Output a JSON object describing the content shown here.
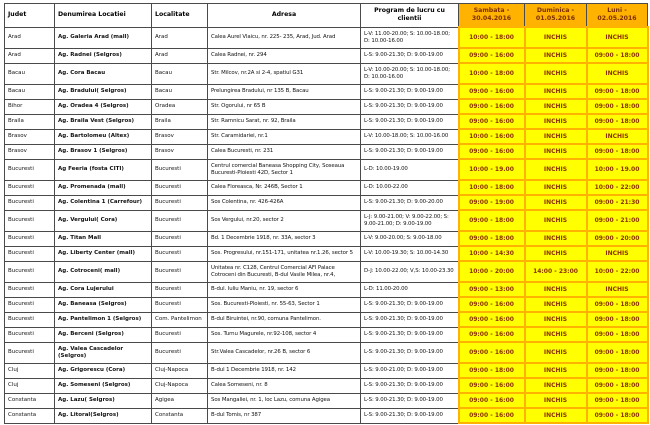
{
  "colors": {
    "header_day_bg": "#ffb200",
    "day_cell_bg": "#ffff00",
    "day_text": "#8b3000",
    "grid_line": "#4a4a4a"
  },
  "table": {
    "headers": {
      "judet": "Judet",
      "denumire": "Denumirea Locatiei",
      "localitate": "Localitate",
      "adresa": "Adresa",
      "program": "Program de lucru cu clientii",
      "sambata": "Sambata - 30.04.2016",
      "duminica": "Duminica - 01.05.2016",
      "luni": "Luni - 02.05.2016"
    },
    "rows": [
      {
        "judet": "Arad",
        "denumire": "Ag. Galeria Arad (mall)",
        "localitate": "Arad",
        "adresa": "Calea Aurel Vlaicu, nr. 225- 235, Arad, Jud. Arad",
        "program": "L-V: 11.00-20.00; S: 10.00-18.00; D: 10.00-16.00",
        "sambata": "10:00 - 18:00",
        "duminica": "INCHIS",
        "luni": "INCHIS"
      },
      {
        "judet": "Arad",
        "denumire": "Ag. Radnei (Selgros)",
        "localitate": "Arad",
        "adresa": "Calea Radnei, nr. 294",
        "program": "L-S: 9.00-21.30; D: 9.00-19.00",
        "sambata": "09:00 - 16:00",
        "duminica": "INCHIS",
        "luni": "09:00 - 18:00"
      },
      {
        "judet": "Bacau",
        "denumire": "Ag. Cora Bacau",
        "localitate": "Bacau",
        "adresa": "Str. Milcov, nr.2A si 2-4, spatiul G31",
        "program": "L-V: 10.00-20.00; S: 10.00-18.00; D: 10.00-16.00",
        "sambata": "10:00 - 18:00",
        "duminica": "INCHIS",
        "luni": "INCHIS"
      },
      {
        "judet": "Bacau",
        "denumire": "Ag. Bradului( Selgros)",
        "localitate": "Bacau",
        "adresa": "Prelungirea Bradului, nr 135 B, Bacau",
        "program": "L-S: 9.00-21.30; D: 9.00-19.00",
        "sambata": "09:00 - 16:00",
        "duminica": "INCHIS",
        "luni": "09:00 - 18:00"
      },
      {
        "judet": "Bihor",
        "denumire": "Ag. Oradea 4 (Selgros)",
        "localitate": "Oradea",
        "adresa": "Str. Ogorului, nr 65 B",
        "program": "L-S: 9.00-21.30; D: 9.00-19.00",
        "sambata": "09:00 - 16:00",
        "duminica": "INCHIS",
        "luni": "09:00 - 18:00"
      },
      {
        "judet": "Braila",
        "denumire": "Ag. Braila Vest (Selgros)",
        "localitate": "Braila",
        "adresa": "Str. Ramnicu Sarat, nr. 92, Braila",
        "program": "L-S: 9.00-21.30; D: 9.00-19.00",
        "sambata": "09:00 - 16:00",
        "duminica": "INCHIS",
        "luni": "09:00 - 18:00"
      },
      {
        "judet": "Brasov",
        "denumire": "Ag. Bartolomeu (Altex)",
        "localitate": "Brasov",
        "adresa": "Str. Caramidariei, nr.1",
        "program": "L-V: 10.00-18.00; S: 10.00-16.00",
        "sambata": "10:00 - 16:00",
        "duminica": "INCHIS",
        "luni": "INCHIS"
      },
      {
        "judet": "Brasov",
        "denumire": "Ag. Brasov 1 (Selgros)",
        "localitate": "Brasov",
        "adresa": "Calea Bucuresti, nr. 231",
        "program": "L-S: 9.00-21.30; D: 9.00-19.00",
        "sambata": "09:00 - 16:00",
        "duminica": "INCHIS",
        "luni": "09:00 - 18:00"
      },
      {
        "judet": "Bucuresti",
        "denumire": "Ag Feeria (fosta CITI)",
        "localitate": "Bucuresti",
        "adresa": "Centrul comercial Baneasa Shopping City, Soseaua Bucuresti-Ploiesti 42D, Sector 1",
        "program": "L-D: 10.00-19.00",
        "sambata": "10:00 - 19.00",
        "duminica": "INCHIS",
        "luni": "10:00 - 19.00"
      },
      {
        "judet": "Bucuresti",
        "denumire": "Ag. Promenada (mall)",
        "localitate": "Bucuresti",
        "adresa": "Calea Floreasca, Nr. 246B, Sector 1",
        "program": "L-D: 10.00-22.00",
        "sambata": "10:00 - 18:00",
        "duminica": "INCHIS",
        "luni": "10:00 - 22:00"
      },
      {
        "judet": "Bucuresti",
        "denumire": "Ag. Colentina 1 (Carrefour)",
        "localitate": "Bucuresti",
        "adresa": "Sos Colentina, nr. 426-426A",
        "program": "L-S: 9.00-21.30; D: 9.00-20.00",
        "sambata": "09:00 - 19:00",
        "duminica": "INCHIS",
        "luni": "09:00 - 21:30"
      },
      {
        "judet": "Bucuresti",
        "denumire": "Ag. Vergului( Cora)",
        "localitate": "Bucuresti",
        "adresa": "Sos Vergului, nr.20, sector 2",
        "program": "L-J: 9.00-21.00; V: 9.00-22.00; S: 9.00-21.00; D: 9.00-19.00",
        "sambata": "09:00 - 18:00",
        "duminica": "INCHIS",
        "luni": "09:00 - 21:00"
      },
      {
        "judet": "Bucuresti",
        "denumire": "Ag. Titan Mall",
        "localitate": "Bucuresti",
        "adresa": "Bd. 1 Decembrie 1918, nr. 33A, sector 3",
        "program": "L-V: 9.00-20.00; S: 9.00-18.00",
        "sambata": "09:00 - 18:00",
        "duminica": "INCHIS",
        "luni": "09:00 - 20:00"
      },
      {
        "judet": "Bucuresti",
        "denumire": "Ag. Liberty Center (mall)",
        "localitate": "Bucuresti",
        "adresa": "Sos. Progresului, nr.151-171, unitatea nr.1.26, sector 5",
        "program": "L-V: 10.00-19.30; S: 10.00-14.30",
        "sambata": "10:00 - 14:30",
        "duminica": "INCHIS",
        "luni": "INCHIS"
      },
      {
        "judet": "Bucuresti",
        "denumire": "Ag. Cotroceni( mall)",
        "localitate": "Bucuresti",
        "adresa": "Unitatea nr. C128, Centrul Comercial AFI Palace Cotroceni din Bucuresti, B-dul Vasile Milea, nr.4,",
        "program": "D-J: 10.00-22.00; V,S: 10.00-23.30",
        "sambata": "10:00 - 20:00",
        "duminica": "14:00 - 23:00",
        "luni": "10:00 - 22:00"
      },
      {
        "judet": "Bucuresti",
        "denumire": "Ag. Cora Lujerului",
        "localitate": "Bucuresti",
        "adresa": "B-dul. Iuliu Maniu, nr. 19, sector 6",
        "program": "L-D: 11.00-20.00",
        "sambata": "09:00 - 13:00",
        "duminica": "INCHIS",
        "luni": "INCHIS"
      },
      {
        "judet": "Bucuresti",
        "denumire": "Ag. Baneasa (Selgros)",
        "localitate": "Bucuresti",
        "adresa": "Sos. Bucuresti-Ploiesti, nr. 55-63, Sector 1",
        "program": "L-S: 9.00-21.30; D: 9.00-19.00",
        "sambata": "09:00 - 16:00",
        "duminica": "INCHIS",
        "luni": "09:00 - 18:00"
      },
      {
        "judet": "Bucuresti",
        "denumire": "Ag. Pantelimon 1 (Selgros)",
        "localitate": "Com. Pantelimon",
        "adresa": "B-dul Biruintei, nr.90, comuna Pantelimon.",
        "program": "L-S: 9.00-21.30; D: 9.00-19.00",
        "sambata": "09:00 - 16:00",
        "duminica": "INCHIS",
        "luni": "09:00 - 18:00"
      },
      {
        "judet": "Bucuresti",
        "denumire": "Ag. Berceni (Selgros)",
        "localitate": "Bucuresti",
        "adresa": "Sos. Turnu Magurele, nr.92-108, sector 4",
        "program": "L-S: 9.00-21.30; D: 9.00-19.00",
        "sambata": "09:00 - 16:00",
        "duminica": "INCHIS",
        "luni": "09:00 - 18:00"
      },
      {
        "judet": "Bucuresti",
        "denumire": "Ag. Valea Cascadelor (Selgros)",
        "localitate": "Bucuresti",
        "adresa": "Str.Valea Cascadelor, nr.26 B, sector 6",
        "program": "L-S: 9.00-21.30; D: 9.00-19.00",
        "sambata": "09:00 - 16:00",
        "duminica": "INCHIS",
        "luni": "09:00 - 18:00"
      },
      {
        "judet": "Cluj",
        "denumire": "Ag. Grigorescu (Cora)",
        "localitate": "Cluj-Napoca",
        "adresa": "B-dul 1 Decembrie 1918, nr. 142",
        "program": "L-S: 9.00-21.00; D: 9.00-19.00",
        "sambata": "09:00 - 18:00",
        "duminica": "INCHIS",
        "luni": "09:00 - 18:00"
      },
      {
        "judet": "Cluj",
        "denumire": "Ag. Someseni (Selgros)",
        "localitate": "Cluj-Napoca",
        "adresa": "Calea Someseni, nr. 8",
        "program": "L-S: 9.00-21.30; D: 9.00-19.00",
        "sambata": "09:00 - 16:00",
        "duminica": "INCHIS",
        "luni": "09:00 - 18:00"
      },
      {
        "judet": "Constanta",
        "denumire": "Ag. Lazu( Selgros)",
        "localitate": "Agigea",
        "adresa": "Sos Mangaliei, nr. 1, loc Lazu, comuna Agigea",
        "program": "L-S: 9.00-21.30; D: 9.00-19.00",
        "sambata": "09:00 - 16:00",
        "duminica": "INCHIS",
        "luni": "09:00 - 18:00"
      },
      {
        "judet": "Constanta",
        "denumire": "Ag. Litoral(Selgros)",
        "localitate": "Constanta",
        "adresa": "B-dul Tomis, nr 387",
        "program": "L-S: 9.00-21.30; D: 9.00-19.00",
        "sambata": "09:00 - 16:00",
        "duminica": "INCHIS",
        "luni": "09:00 - 18:00"
      }
    ]
  }
}
